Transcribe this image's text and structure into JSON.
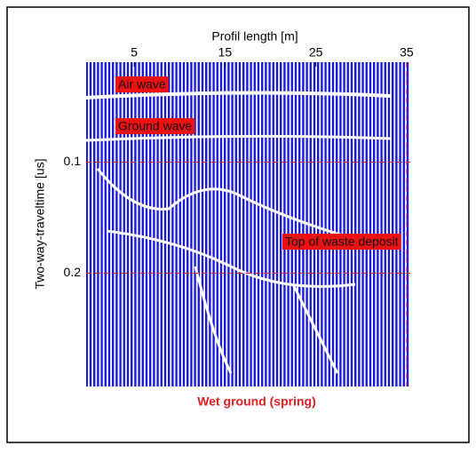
{
  "chart_data": {
    "type": "radargram",
    "xlabel": "Profil length [m]",
    "ylabel": "Two-way-traveltime [us]",
    "caption": "Wet ground (spring)",
    "xlim": [
      -0.3,
      35.4
    ],
    "xticks": [
      5,
      15,
      25,
      35
    ],
    "ylim": [
      0.01,
      0.302
    ],
    "yticks": [
      0.1,
      0.2
    ],
    "grid": true,
    "grid_color": "#e02020",
    "trace_color": "#1a1ad8",
    "annotations": [
      "Air wave",
      "Ground wave",
      "Top of waste deposit"
    ]
  }
}
